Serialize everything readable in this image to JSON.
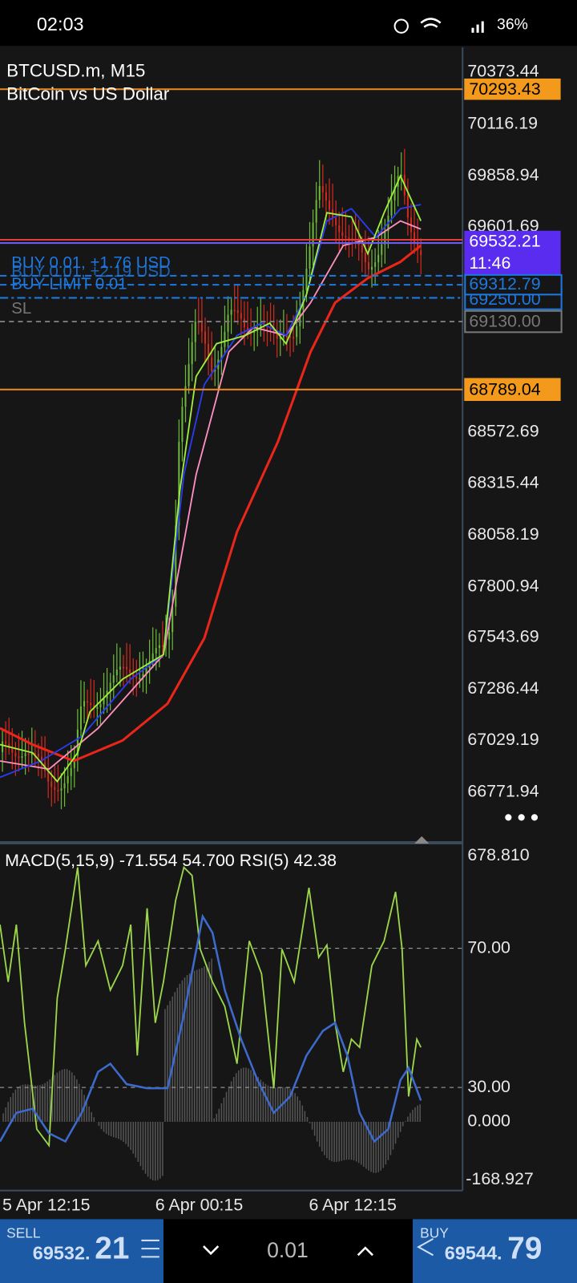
{
  "status_bar": {
    "time": "02:03",
    "battery": "36%"
  },
  "chart": {
    "symbol": "BTCUSD.m, M15",
    "description": "BitCoin vs US Dollar",
    "price_axis": [
      "70373.44",
      "70116.19",
      "69858.94",
      "69601.69",
      "68572.69",
      "68315.44",
      "68058.19",
      "67800.94",
      "67543.69",
      "67286.44",
      "67029.19",
      "66771.94"
    ],
    "price_tags": {
      "high_line": "70293.43",
      "bid": "69532.21",
      "countdown": "11:46",
      "buy_entry": "69312.79",
      "buy_limit": "69250.00",
      "stop_loss": "69130.00",
      "low_line": "68789.04"
    },
    "order_lines": [
      "BUY 0.01, +1.76 USD",
      "BUY 0.01, +2.19 USD",
      "BUY LIMIT 0.01",
      "SL"
    ],
    "indicator": {
      "label": "MACD(5,15,9) -71.554 54.700 RSI(5) 42.38",
      "axis": [
        "678.810",
        "70.00",
        "30.00",
        "0.000",
        "-168.927"
      ]
    },
    "time_axis": [
      "5 Apr 12:15",
      "6 Apr 00:15",
      "6 Apr 12:15"
    ]
  },
  "trade_panel": {
    "sell_label": "SELL",
    "sell_price": "69532.",
    "sell_price_big": "21",
    "volume": "0.01",
    "buy_label": "BUY",
    "buy_price": "69544.",
    "buy_price_big": "79"
  }
}
